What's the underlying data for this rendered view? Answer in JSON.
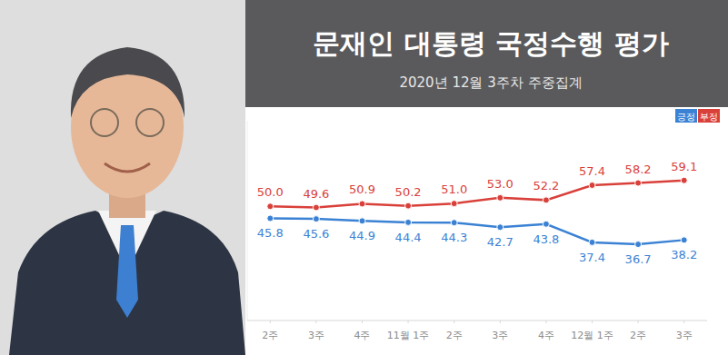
{
  "chart_data": {
    "type": "line",
    "title": "문재인 대통령 국정수행 평가",
    "subtitle": "2020년 12월 3주차 주중집계",
    "categories": [
      "2주",
      "3주",
      "4주",
      "11월 1주",
      "2주",
      "3주",
      "4주",
      "12월 1주",
      "2주",
      "3주"
    ],
    "series": [
      {
        "name": "긍정",
        "color": "#3b82d4",
        "marker": "circle",
        "values": [
          45.8,
          45.6,
          44.9,
          44.4,
          44.3,
          42.7,
          43.8,
          37.4,
          36.7,
          38.2
        ],
        "value_labels": [
          "45.8",
          "45.6",
          "44.9",
          "44.4",
          "44.3",
          "42.7",
          "43.8",
          "37.4",
          "36.7",
          "38.2"
        ]
      },
      {
        "name": "부정",
        "color": "#d9403a",
        "marker": "circle",
        "values": [
          50.0,
          49.6,
          50.9,
          50.2,
          51.0,
          53.0,
          52.2,
          57.4,
          58.2,
          59.1
        ],
        "value_labels": [
          "50.0",
          "49.6",
          "50.9",
          "50.2",
          "51.0",
          "53.0",
          "52.2",
          "57.4",
          "58.2",
          "59.1"
        ]
      }
    ],
    "ylim": [
      10,
      80
    ],
    "data_labels": true,
    "tick_labels": "x",
    "legend": "top-right",
    "grid": false
  }
}
